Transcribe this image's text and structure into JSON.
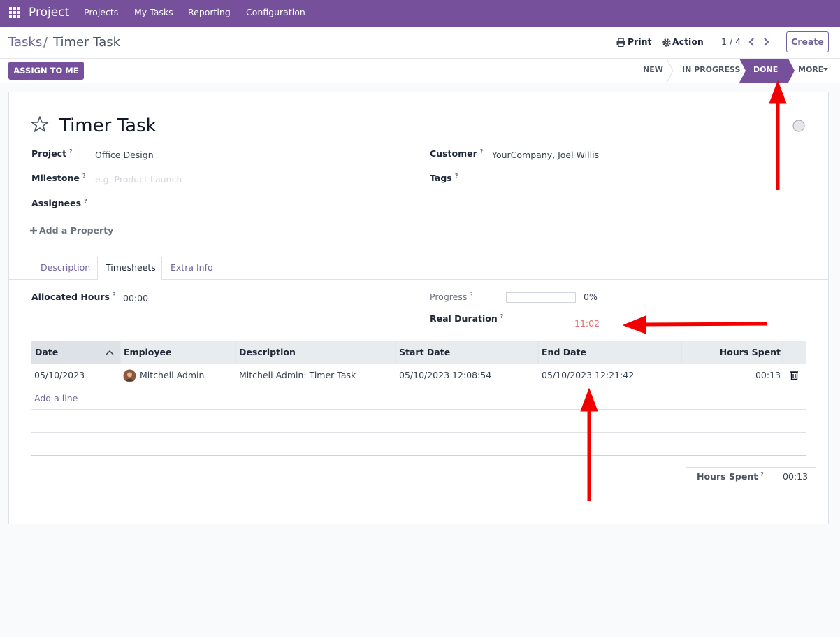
{
  "navbar": {
    "app": "Project",
    "menu": [
      "Projects",
      "My Tasks",
      "Reporting",
      "Configuration"
    ]
  },
  "breadcrumb": {
    "parent": "Tasks",
    "separator": "/",
    "current": "Timer Task"
  },
  "controls": {
    "print": "Print",
    "action": "Action",
    "pager": "1 / 4",
    "create": "Create"
  },
  "statusbar": {
    "button": "ASSIGN TO ME",
    "stages": [
      "NEW",
      "IN PROGRESS",
      "DONE"
    ],
    "more": "MORE"
  },
  "form": {
    "title": "Timer Task",
    "help": "?",
    "left_fields": [
      {
        "label": "Project",
        "value": "Office Design"
      },
      {
        "label": "Milestone",
        "placeholder": "e.g. Product Launch"
      },
      {
        "label": "Assignees"
      }
    ],
    "right_fields": [
      {
        "label": "Customer",
        "value": "YourCompany, Joel Willis"
      },
      {
        "label": "Tags"
      }
    ],
    "add_property": "Add a Property",
    "tabs": [
      "Description",
      "Timesheets",
      "Extra Info"
    ],
    "allocated_hours": {
      "label": "Allocated Hours",
      "value": "00:00"
    },
    "progress": {
      "label": "Progress",
      "value": "0%"
    },
    "real_duration": {
      "label": "Real Duration",
      "value": "11:02"
    }
  },
  "table": {
    "columns": [
      "Date",
      "Employee",
      "Description",
      "Start Date",
      "End Date",
      "Hours Spent"
    ],
    "rows": [
      [
        "05/10/2023",
        "Mitchell Admin",
        "Mitchell Admin: Timer Task",
        "05/10/2023 12:08:54",
        "05/10/2023 12:21:42",
        "00:13"
      ]
    ],
    "add_line": "Add a line",
    "total": {
      "label": "Hours Spent",
      "separator": ":",
      "value": "00:13"
    }
  }
}
